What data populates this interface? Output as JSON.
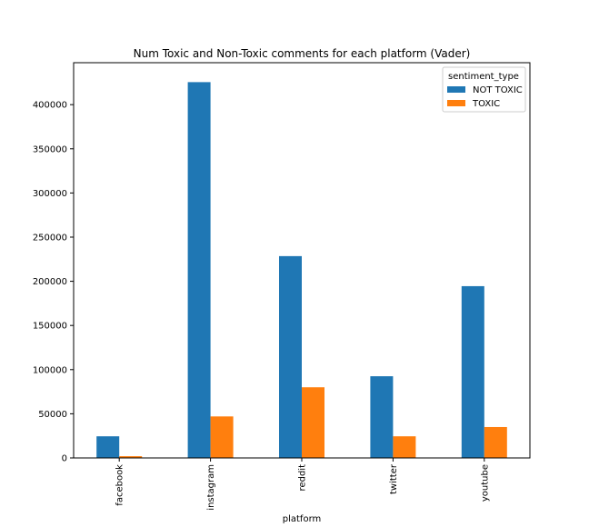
{
  "chart_data": {
    "type": "bar",
    "title": "Num Toxic and Non-Toxic comments for each platform (Vader)",
    "xlabel": "platform",
    "ylabel": "",
    "categories": [
      "facebook",
      "instagram",
      "reddit",
      "twitter",
      "youtube"
    ],
    "series": [
      {
        "name": "NOT TOXIC",
        "color": "#1f77b4",
        "values": [
          24500,
          425500,
          228500,
          92500,
          194500
        ]
      },
      {
        "name": "TOXIC",
        "color": "#ff7f0e",
        "values": [
          2000,
          47000,
          80000,
          24500,
          35000
        ]
      }
    ],
    "ylim": [
      0,
      447500
    ],
    "yticks": [
      0,
      50000,
      100000,
      150000,
      200000,
      250000,
      300000,
      350000,
      400000
    ],
    "grid": false,
    "legend": {
      "title": "sentiment_type",
      "placement": "top-right"
    }
  }
}
